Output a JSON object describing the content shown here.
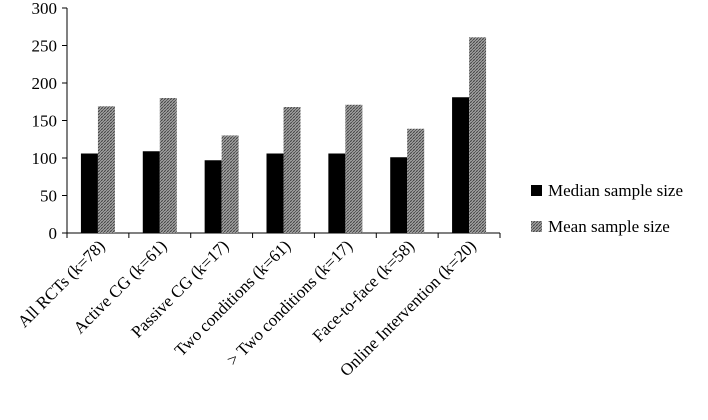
{
  "chart_data": {
    "type": "bar",
    "title": "",
    "xlabel": "",
    "ylabel": "",
    "ylim": [
      0,
      300
    ],
    "yticks": [
      0,
      50,
      100,
      150,
      200,
      250,
      300
    ],
    "grid": false,
    "legend_position": "right",
    "categories": [
      "All RCTs (k=78)",
      "Active CG (k=61)",
      "Passive CG (k=17)",
      "Two conditions (k=61)",
      "> Two conditions (k=17)",
      "Face-to-face (k=58)",
      "Online Intervention (k=20)"
    ],
    "series": [
      {
        "name": "Median sample size",
        "values": [
          106,
          109,
          97,
          106,
          106,
          101,
          181
        ],
        "color": "#000000",
        "pattern": "solid"
      },
      {
        "name": "Mean sample size",
        "values": [
          169,
          180,
          130,
          168,
          171,
          139,
          261
        ],
        "color": "#8c8c8c",
        "pattern": "crosshatch"
      }
    ]
  }
}
